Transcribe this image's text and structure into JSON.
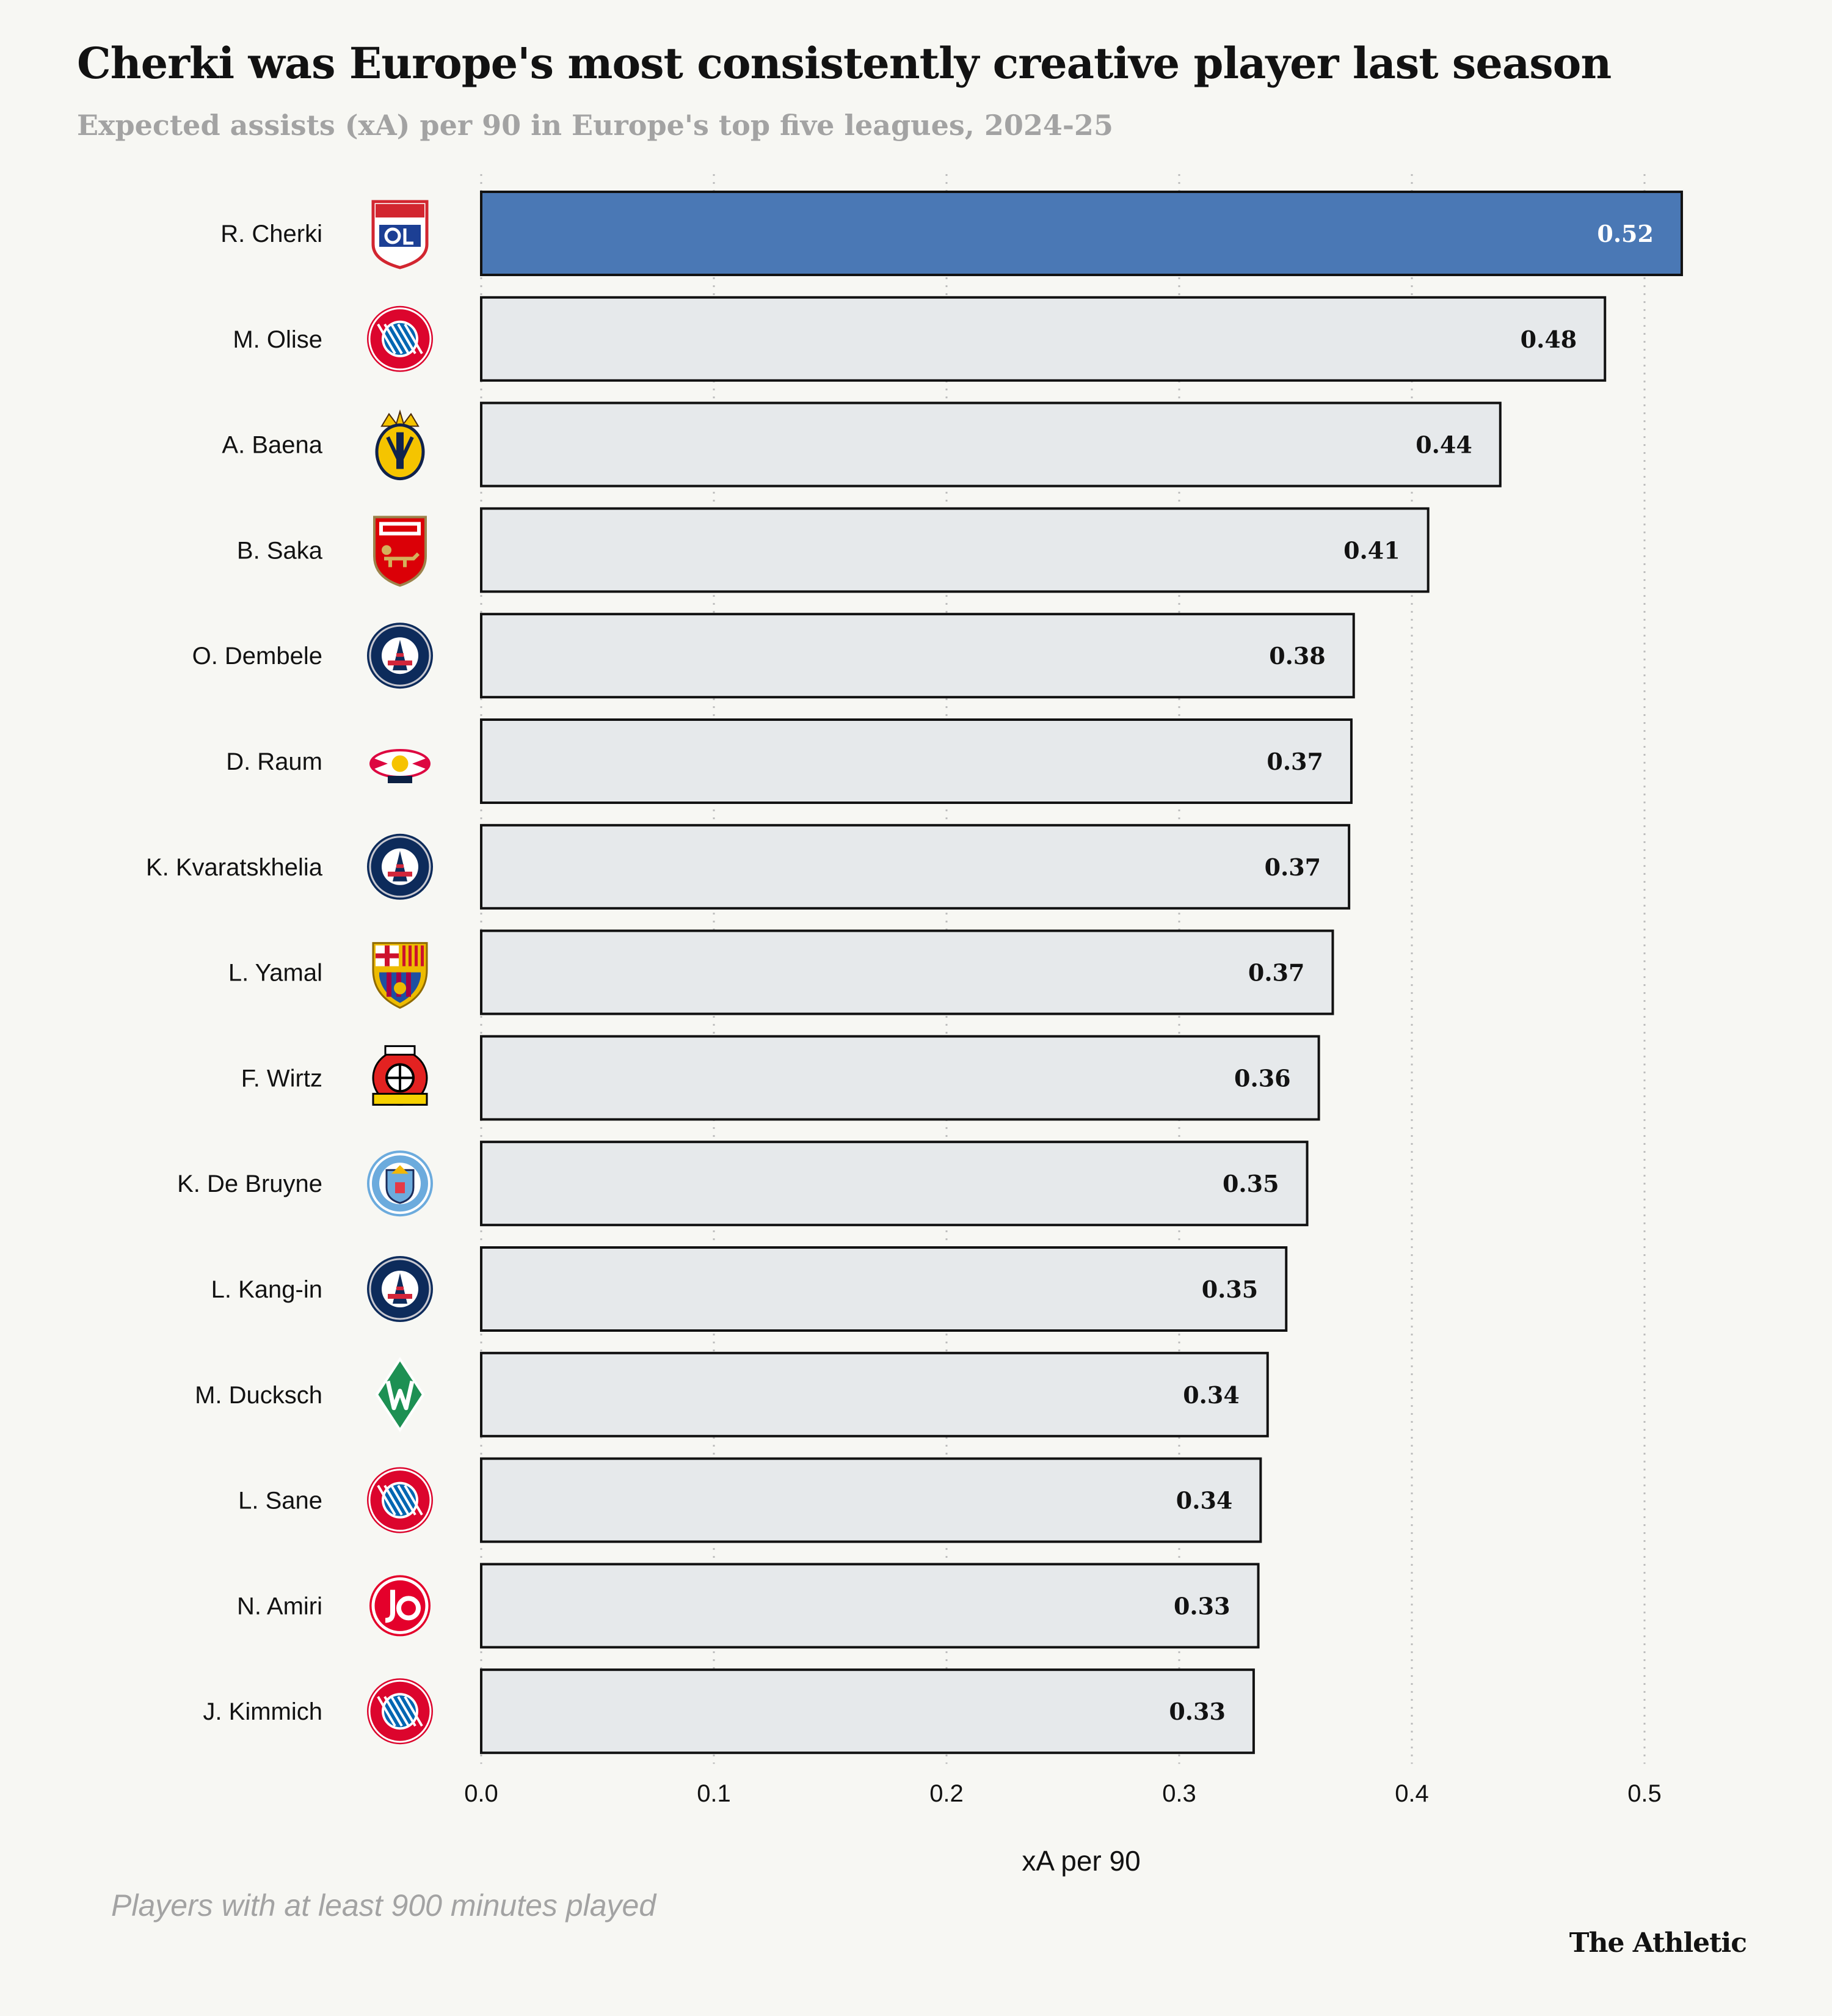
{
  "title": "Cherki was Europe's most consistently creative player last season",
  "subtitle": "Expected assists (xA) per 90 in Europe's top five leagues, 2024-25",
  "footnote": "Players with at least 900 minutes played",
  "brand": "The Athletic",
  "chart_data": {
    "type": "bar",
    "orientation": "horizontal",
    "categories": [
      "R. Cherki",
      "M. Olise",
      "A. Baena",
      "B. Saka",
      "O. Dembele",
      "D. Raum",
      "K. Kvaratskhelia",
      "L. Yamal",
      "F. Wirtz",
      "K. De Bruyne",
      "L. Kang-in",
      "M. Ducksch",
      "L. Sane",
      "N. Amiri",
      "J. Kimmich"
    ],
    "values": [
      0.516,
      0.483,
      0.438,
      0.407,
      0.375,
      0.374,
      0.373,
      0.366,
      0.36,
      0.355,
      0.346,
      0.338,
      0.335,
      0.334,
      0.332
    ],
    "value_labels": [
      "0.52",
      "0.48",
      "0.44",
      "0.41",
      "0.38",
      "0.37",
      "0.37",
      "0.37",
      "0.36",
      "0.35",
      "0.35",
      "0.34",
      "0.34",
      "0.33",
      "0.33"
    ],
    "club_badges": [
      "lyon-badge",
      "bayern-badge",
      "villarreal-badge",
      "arsenal-badge",
      "psg-badge",
      "leipzig-badge",
      "psg-badge",
      "barcelona-badge",
      "leverkusen-badge",
      "man-city-badge",
      "psg-badge",
      "werder-badge",
      "bayern-badge",
      "mainz-badge",
      "bayern-badge"
    ],
    "highlight_index": 0,
    "xlabel": "xA per 90",
    "ylabel": "",
    "xlim": [
      0,
      0.53
    ],
    "xticks": [
      0,
      0.1,
      0.2,
      0.3,
      0.4,
      0.5
    ],
    "xtick_labels": [
      "0.0",
      "0.1",
      "0.2",
      "0.3",
      "0.4",
      "0.5"
    ],
    "grid": "vertical-dotted",
    "colors": {
      "highlight": "#4a78b5",
      "default": "#e6e9eb",
      "background": "#f7f7f3"
    }
  }
}
